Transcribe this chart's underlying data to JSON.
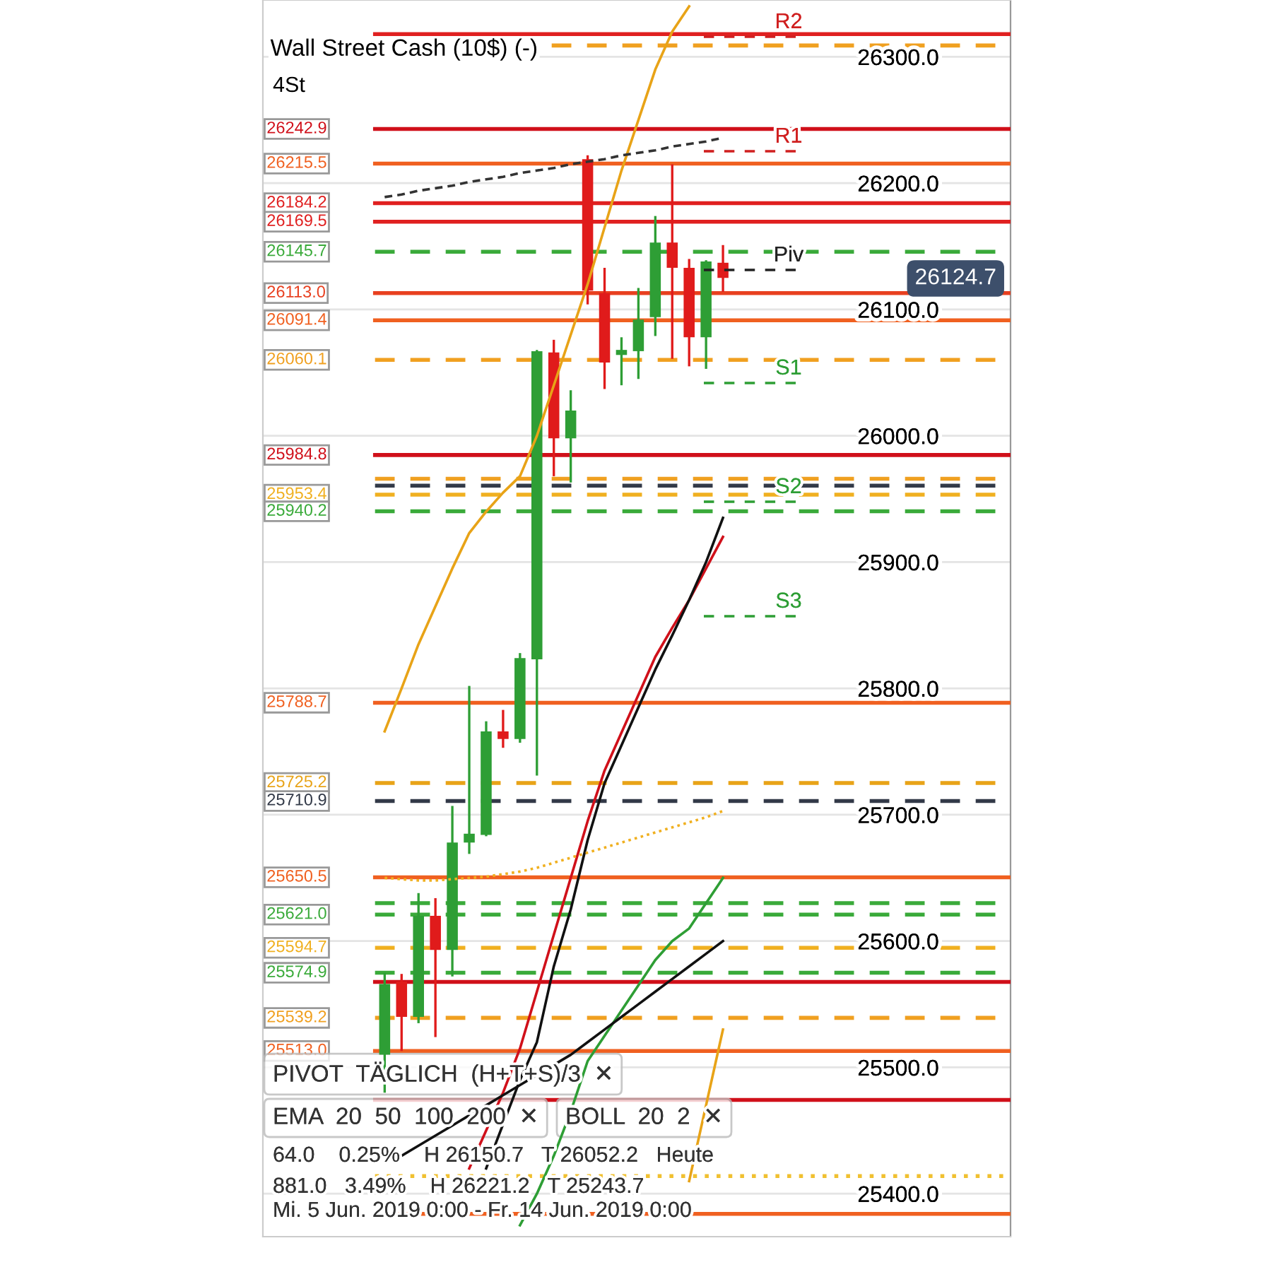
{
  "chart_data": {
    "type": "candlestick",
    "title": "Wall Street Cash (10$) (-)",
    "subtitle": "4St",
    "categories": [
      null,
      null,
      null,
      null,
      null,
      null,
      null,
      null,
      null,
      null,
      null,
      null,
      null,
      null,
      null,
      null,
      null,
      null,
      null,
      null,
      null
    ],
    "ohlc": [
      [
        25510,
        25575,
        25480,
        25566
      ],
      [
        25568,
        25574,
        25513,
        25540
      ],
      [
        25540,
        25638,
        25535,
        25620
      ],
      [
        25620,
        25634,
        25524,
        25593
      ],
      [
        25593,
        25707,
        25572,
        25678
      ],
      [
        25678,
        25802,
        25669,
        25685
      ],
      [
        25684,
        25774,
        25683,
        25766
      ],
      [
        25766,
        25783,
        25753,
        25760
      ],
      [
        25760,
        25828,
        25757,
        25824
      ],
      [
        25823,
        26068,
        25731,
        26067
      ],
      [
        26066,
        26076,
        25968,
        25998
      ],
      [
        25998,
        26036,
        25963,
        26020
      ],
      [
        26219,
        26222,
        26104,
        26115
      ],
      [
        26113,
        26133,
        26037,
        26058
      ],
      [
        26064,
        26078,
        26040,
        26068
      ],
      [
        26067,
        26117,
        26045,
        26092
      ],
      [
        26094,
        26174,
        26079,
        26153
      ],
      [
        26153,
        26215,
        26061,
        26133
      ],
      [
        26133,
        26140,
        26055,
        26078
      ],
      [
        26078,
        26139,
        26053,
        26138
      ],
      [
        26137,
        26151,
        26114,
        26125
      ]
    ],
    "colors": [
      "#2e9e35",
      "#e01b1b",
      "#2e9e35",
      "#e01b1b",
      "#2e9e35",
      "#2e9e35",
      "#2e9e35",
      "#e01b1b",
      "#2e9e35",
      "#2e9e35",
      "#e01b1b",
      "#2e9e35",
      "#e01b1b",
      "#e01b1b",
      "#2e9e35",
      "#2e9e35",
      "#2e9e35",
      "#e01b1b",
      "#e01b1b",
      "#2e9e35",
      "#e01b1b"
    ],
    "series": [
      {
        "type": "line",
        "color": "#e8a317",
        "values": [
          25766,
          25800,
          25835,
          25865,
          25895,
          25923,
          25940,
          25955,
          25968,
          26000,
          26040,
          26080,
          26120,
          26165,
          26210,
          26250,
          26290,
          26320,
          26340,
          null,
          null
        ]
      },
      {
        "type": "line",
        "color": "#e8a317",
        "values": [
          null,
          null,
          null,
          null,
          null,
          null,
          null,
          null,
          null,
          null,
          null,
          null,
          null,
          null,
          null,
          null,
          null,
          null,
          25410,
          25470,
          25530
        ]
      },
      {
        "type": "line",
        "color": "#d0101a",
        "values": [
          null,
          null,
          null,
          null,
          null,
          25420,
          25450,
          25480,
          25515,
          25560,
          25605,
          25650,
          25695,
          25735,
          25765,
          25795,
          25825,
          25848,
          25870,
          25895,
          25920
        ]
      },
      {
        "type": "line",
        "color": "#111111",
        "values": [
          null,
          null,
          null,
          null,
          null,
          null,
          25420,
          25455,
          25490,
          25520,
          25580,
          25625,
          25680,
          25725,
          25755,
          25785,
          25815,
          25842,
          25870,
          25900,
          25935
        ]
      },
      {
        "type": "line",
        "color": "#2e9e35",
        "values": [
          null,
          null,
          null,
          null,
          null,
          null,
          null,
          null,
          25375,
          25400,
          25430,
          25465,
          25505,
          25525,
          25545,
          25565,
          25585,
          25600,
          25610,
          25630,
          25650
        ]
      },
      {
        "type": "line",
        "color": "#111111",
        "values": [
          null,
          25430,
          25438,
          25446,
          25454,
          25462,
          25470,
          25478,
          25486,
          25494,
          25502,
          25510,
          25520,
          25530,
          25540,
          25550,
          25560,
          25570,
          25580,
          25590,
          25600
        ]
      },
      {
        "type": "line",
        "color": "#f0b020",
        "line_style": "dotted",
        "values": [
          25650,
          25649,
          25648,
          25648,
          25649,
          25650,
          25651,
          25653,
          25655,
          25658,
          25662,
          25666,
          25670,
          25674,
          25678,
          25682,
          25686,
          25690,
          25694,
          25698,
          25703
        ]
      },
      {
        "type": "line",
        "color": "#333333",
        "line_style": "dashed",
        "values": [
          26189,
          26191,
          26194,
          26196,
          26198,
          26201,
          26203,
          26205,
          26208,
          26210,
          26212,
          26215,
          26217,
          26219,
          26222,
          26224,
          26226,
          26229,
          26231,
          26233,
          26236
        ]
      }
    ],
    "ref_lines": [
      {
        "axis": "y",
        "value": 26318,
        "label": null,
        "color": "#e02020"
      },
      {
        "axis": "y",
        "value": 26309,
        "label": null,
        "color": "#f0a020",
        "line_style": "dashed"
      },
      {
        "axis": "y",
        "value": 26242.9,
        "label": "26242.9",
        "color": "#d0101a"
      },
      {
        "axis": "y",
        "value": 26215.5,
        "label": "26215.5",
        "color": "#f06020"
      },
      {
        "axis": "y",
        "value": 26184.2,
        "label": "26184.2",
        "color": "#e02020"
      },
      {
        "axis": "y",
        "value": 26169.5,
        "label": "26169.5",
        "color": "#e02020"
      },
      {
        "axis": "y",
        "value": 26145.7,
        "label": "26145.7",
        "color": "#3aaa3a",
        "line_style": "dashed"
      },
      {
        "axis": "y",
        "value": 26113.0,
        "label": "26113.0",
        "color": "#e84020"
      },
      {
        "axis": "y",
        "value": 26091.4,
        "label": "26091.4",
        "color": "#f06020"
      },
      {
        "axis": "y",
        "value": 26060.1,
        "label": "26060.1",
        "color": "#f0a020",
        "line_style": "dashed"
      },
      {
        "axis": "y",
        "value": 25984.8,
        "label": "25984.8",
        "color": "#d0101a"
      },
      {
        "axis": "y",
        "value": 25966.0,
        "label": null,
        "color": "#f0a020",
        "line_style": "dashed"
      },
      {
        "axis": "y",
        "value": 25960.5,
        "label": null,
        "color": "#333a48",
        "line_style": "dashed"
      },
      {
        "axis": "y",
        "value": 25953.4,
        "label": "25953.4",
        "color": "#f0b020",
        "line_style": "dashed"
      },
      {
        "axis": "y",
        "value": 25940.2,
        "label": "25940.2",
        "color": "#3aaa3a",
        "line_style": "dashed"
      },
      {
        "axis": "y",
        "value": 25788.7,
        "label": "25788.7",
        "color": "#f06020"
      },
      {
        "axis": "y",
        "value": 25725.2,
        "label": "25725.2",
        "color": "#e8a317",
        "line_style": "dashed"
      },
      {
        "axis": "y",
        "value": 25710.9,
        "label": "25710.9",
        "color": "#333a48",
        "line_style": "dashed"
      },
      {
        "axis": "y",
        "value": 25650.5,
        "label": "25650.5",
        "color": "#f06020"
      },
      {
        "axis": "y",
        "value": 25630.0,
        "label": null,
        "color": "#3aaa3a",
        "line_style": "dashed"
      },
      {
        "axis": "y",
        "value": 25621.0,
        "label": "25621.0",
        "color": "#3aaa3a",
        "line_style": "dashed"
      },
      {
        "axis": "y",
        "value": 25594.7,
        "label": "25594.7",
        "color": "#f0b020",
        "line_style": "dashed"
      },
      {
        "axis": "y",
        "value": 25574.9,
        "label": "25574.9",
        "color": "#3aaa3a",
        "line_style": "dashed"
      },
      {
        "axis": "y",
        "value": 25567.7,
        "label": null,
        "color": "#d0101a"
      },
      {
        "axis": "y",
        "value": 25539.2,
        "label": "25539.2",
        "color": "#f0a020",
        "line_style": "dashed"
      },
      {
        "axis": "y",
        "value": 25513.0,
        "label": "25513.0",
        "color": "#f06020"
      },
      {
        "axis": "y",
        "value": 25474.2,
        "label": null,
        "color": "#d0101a"
      },
      {
        "axis": "y",
        "value": 25414,
        "label": null,
        "color": "#f0c030",
        "line_style": "dotted"
      },
      {
        "axis": "y",
        "value": 25384,
        "label": null,
        "color": "#f06020"
      }
    ],
    "annotations": [
      "R2",
      "R1",
      "Piv",
      "S1",
      "S2",
      "S3",
      "26124.7",
      "PIVOT  TÄGLICH  (H+T+S)/3  ✕",
      "EMA  20  50  100  200  ✕",
      "BOLL  20  2  ✕",
      "64.0    0.25%    H 26150.7   T 26052.2   Heute",
      "881.0   3.49%    H 26221.2   T 25243.7",
      "Mi. 5 Jun. 2019 0:00 - Fr. 14 Jun. 2019 0:00"
    ],
    "ylim": [
      25366,
      26345
    ],
    "yticks": [
      {
        "value": 25400,
        "label": "25400.0"
      },
      {
        "value": 25500,
        "label": "25500.0"
      },
      {
        "value": 25600,
        "label": "25600.0"
      },
      {
        "value": 25700,
        "label": "25700.0"
      },
      {
        "value": 25800,
        "label": "25800.0"
      },
      {
        "value": 25900,
        "label": "25900.0"
      },
      {
        "value": 26000,
        "label": "26000.0"
      },
      {
        "value": 26100,
        "label": "26100.0"
      },
      {
        "value": 26200,
        "label": "26200.0"
      },
      {
        "value": 26300,
        "label": "26300.0"
      }
    ],
    "tick_labels": "y",
    "grid": "y",
    "legend": false
  }
}
